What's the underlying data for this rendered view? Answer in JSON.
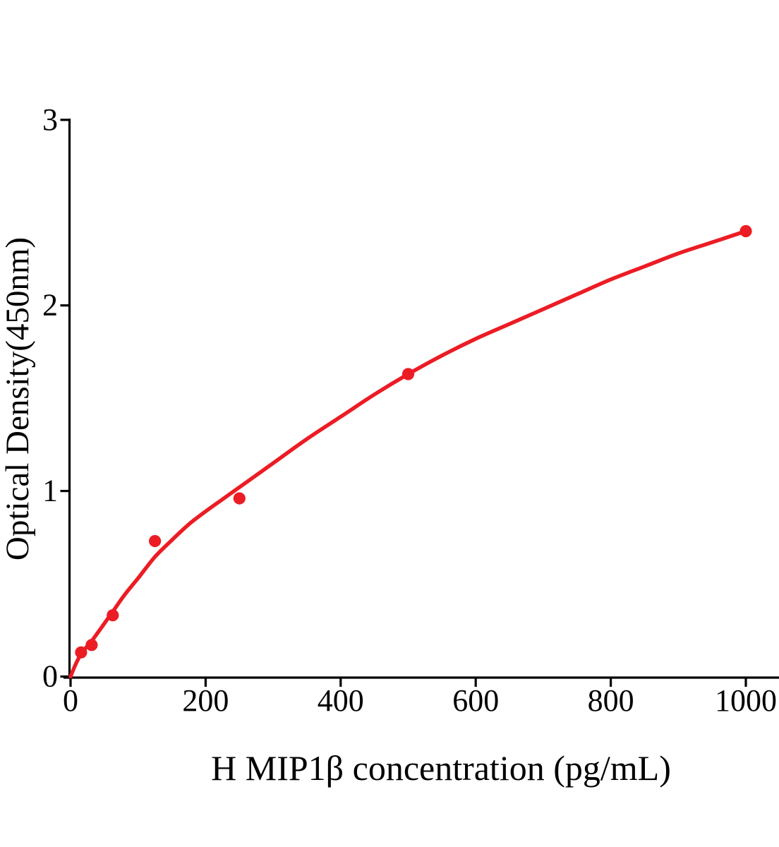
{
  "figure": {
    "background": "#ffffff"
  },
  "chart_data": {
    "type": "scatter",
    "title": "",
    "xlabel": "H MIP1β concentration (pg/mL)",
    "ylabel": "Optical Density(450nm)",
    "x_ticks": [
      "0",
      "200",
      "400",
      "600",
      "800",
      "1000"
    ],
    "x_tick_values": [
      0,
      200,
      400,
      600,
      800,
      1000
    ],
    "y_ticks": [
      "0",
      "1",
      "2",
      "3"
    ],
    "y_tick_values": [
      0,
      1,
      2,
      3
    ],
    "xlim": [
      0,
      1050
    ],
    "ylim": [
      0,
      3
    ],
    "grid": false,
    "legend": "none",
    "accent_color": "#EC1C24",
    "axis_color": "#000000",
    "series": [
      {
        "name": "standard-points",
        "type": "scatter",
        "marker": "circle",
        "color": "#EC1C24",
        "x": [
          15.6,
          31.25,
          62.5,
          125,
          250,
          500,
          1000
        ],
        "y": [
          0.13,
          0.17,
          0.33,
          0.73,
          0.96,
          1.63,
          2.4
        ]
      },
      {
        "name": "fitted-curve",
        "type": "line",
        "color": "#EC1C24",
        "x": [
          0,
          5,
          10,
          16,
          24,
          31,
          45,
          62.5,
          80,
          100,
          125,
          150,
          175,
          200,
          225,
          250,
          300,
          350,
          400,
          450,
          500,
          550,
          600,
          650,
          700,
          750,
          800,
          850,
          900,
          950,
          1000
        ],
        "y": [
          0,
          0.045,
          0.085,
          0.125,
          0.16,
          0.19,
          0.26,
          0.35,
          0.44,
          0.53,
          0.645,
          0.735,
          0.82,
          0.89,
          0.955,
          1.02,
          1.15,
          1.28,
          1.4,
          1.52,
          1.63,
          1.73,
          1.82,
          1.9,
          1.98,
          2.06,
          2.14,
          2.21,
          2.28,
          2.34,
          2.4
        ]
      }
    ]
  }
}
